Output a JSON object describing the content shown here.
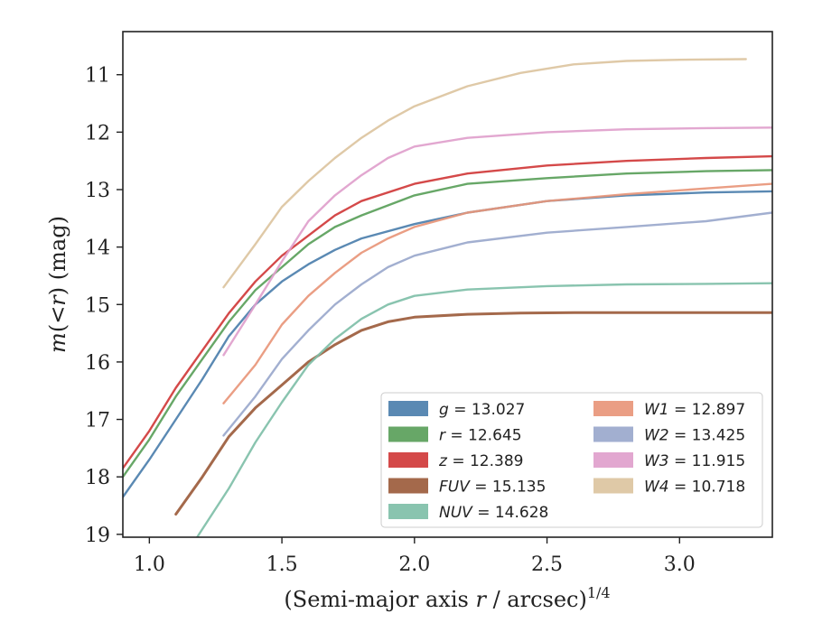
{
  "chart_data": {
    "type": "line",
    "title": "",
    "xlabel_main": "(Semi-major axis ",
    "xlabel_var": "r",
    "xlabel_unit": " / arcsec)",
    "xlabel_exp": "1/4",
    "ylabel_main": "m",
    "ylabel_mid": "(<",
    "ylabel_var": "r",
    "ylabel_end": ") (mag)",
    "xlim": [
      0.9,
      3.35
    ],
    "ylim": [
      19.05,
      10.25
    ],
    "y_inverted": true,
    "grid": false,
    "legend_position": "lower-right",
    "x_ticks": [
      1.0,
      1.5,
      2.0,
      2.5,
      3.0
    ],
    "x_tick_labels": [
      "1.0",
      "1.5",
      "2.0",
      "2.5",
      "3.0"
    ],
    "y_ticks": [
      11,
      12,
      13,
      14,
      15,
      16,
      17,
      18,
      19
    ],
    "y_tick_labels": [
      "11",
      "12",
      "13",
      "14",
      "15",
      "16",
      "17",
      "18",
      "19"
    ],
    "series": [
      {
        "name": "g",
        "value": "13.027",
        "legend_label": "g = 13.027",
        "color": "#4c7fad",
        "points": [
          [
            0.9,
            18.35
          ],
          [
            1.0,
            17.7
          ],
          [
            1.1,
            17.0
          ],
          [
            1.2,
            16.3
          ],
          [
            1.3,
            15.55
          ],
          [
            1.4,
            15.0
          ],
          [
            1.5,
            14.6
          ],
          [
            1.6,
            14.3
          ],
          [
            1.7,
            14.05
          ],
          [
            1.8,
            13.85
          ],
          [
            2.0,
            13.6
          ],
          [
            2.2,
            13.4
          ],
          [
            2.5,
            13.2
          ],
          [
            2.8,
            13.1
          ],
          [
            3.1,
            13.05
          ],
          [
            3.35,
            13.03
          ]
        ]
      },
      {
        "name": "r",
        "value": "12.645",
        "legend_label": "r = 12.645",
        "color": "#5aa05a",
        "points": [
          [
            0.9,
            18.0
          ],
          [
            1.0,
            17.35
          ],
          [
            1.1,
            16.6
          ],
          [
            1.2,
            15.95
          ],
          [
            1.3,
            15.3
          ],
          [
            1.4,
            14.75
          ],
          [
            1.5,
            14.35
          ],
          [
            1.6,
            13.95
          ],
          [
            1.7,
            13.65
          ],
          [
            1.8,
            13.45
          ],
          [
            2.0,
            13.1
          ],
          [
            2.2,
            12.9
          ],
          [
            2.5,
            12.8
          ],
          [
            2.8,
            12.72
          ],
          [
            3.1,
            12.68
          ],
          [
            3.35,
            12.66
          ]
        ]
      },
      {
        "name": "z",
        "value": "12.389",
        "legend_label": "z = 12.389",
        "color": "#d03a3a",
        "points": [
          [
            0.9,
            17.85
          ],
          [
            1.0,
            17.2
          ],
          [
            1.1,
            16.45
          ],
          [
            1.2,
            15.8
          ],
          [
            1.3,
            15.15
          ],
          [
            1.4,
            14.6
          ],
          [
            1.5,
            14.15
          ],
          [
            1.6,
            13.8
          ],
          [
            1.7,
            13.45
          ],
          [
            1.8,
            13.2
          ],
          [
            2.0,
            12.9
          ],
          [
            2.2,
            12.72
          ],
          [
            2.5,
            12.58
          ],
          [
            2.8,
            12.5
          ],
          [
            3.1,
            12.45
          ],
          [
            3.35,
            12.42
          ]
        ]
      },
      {
        "name": "FUV",
        "value": "15.135",
        "legend_label": "FUV = 15.135",
        "color": "#9c5c3c",
        "points": [
          [
            1.1,
            18.65
          ],
          [
            1.2,
            18.0
          ],
          [
            1.3,
            17.3
          ],
          [
            1.4,
            16.8
          ],
          [
            1.5,
            16.4
          ],
          [
            1.6,
            16.0
          ],
          [
            1.7,
            15.7
          ],
          [
            1.8,
            15.45
          ],
          [
            1.9,
            15.3
          ],
          [
            2.0,
            15.22
          ],
          [
            2.2,
            15.17
          ],
          [
            2.4,
            15.15
          ],
          [
            2.62,
            15.14
          ],
          [
            3.0,
            15.14
          ],
          [
            3.35,
            15.14
          ]
        ]
      },
      {
        "name": "NUV",
        "value": "14.628",
        "legend_label": "NUV = 14.628",
        "color": "#7fbfa8",
        "points": [
          [
            1.18,
            19.05
          ],
          [
            1.3,
            18.2
          ],
          [
            1.4,
            17.4
          ],
          [
            1.5,
            16.7
          ],
          [
            1.6,
            16.05
          ],
          [
            1.7,
            15.6
          ],
          [
            1.8,
            15.25
          ],
          [
            1.9,
            15.0
          ],
          [
            2.0,
            14.85
          ],
          [
            2.2,
            14.74
          ],
          [
            2.5,
            14.68
          ],
          [
            2.8,
            14.65
          ],
          [
            3.1,
            14.64
          ],
          [
            3.35,
            14.63
          ]
        ]
      },
      {
        "name": "W1",
        "value": "12.897",
        "legend_label": "W1 = 12.897",
        "color": "#e8967a",
        "points": [
          [
            1.28,
            16.72
          ],
          [
            1.4,
            16.05
          ],
          [
            1.5,
            15.35
          ],
          [
            1.6,
            14.85
          ],
          [
            1.7,
            14.45
          ],
          [
            1.8,
            14.1
          ],
          [
            1.9,
            13.85
          ],
          [
            2.0,
            13.65
          ],
          [
            2.2,
            13.4
          ],
          [
            2.5,
            13.2
          ],
          [
            2.8,
            13.08
          ],
          [
            3.1,
            12.98
          ],
          [
            3.35,
            12.9
          ]
        ]
      },
      {
        "name": "W2",
        "value": "13.425",
        "legend_label": "W2 = 13.425",
        "color": "#9aa8cc",
        "points": [
          [
            1.28,
            17.28
          ],
          [
            1.4,
            16.6
          ],
          [
            1.5,
            15.95
          ],
          [
            1.6,
            15.45
          ],
          [
            1.7,
            15.0
          ],
          [
            1.8,
            14.65
          ],
          [
            1.9,
            14.35
          ],
          [
            2.0,
            14.15
          ],
          [
            2.2,
            13.92
          ],
          [
            2.5,
            13.75
          ],
          [
            2.8,
            13.65
          ],
          [
            3.1,
            13.55
          ],
          [
            3.35,
            13.4
          ]
        ]
      },
      {
        "name": "W3",
        "value": "11.915",
        "legend_label": "W3 = 11.915",
        "color": "#e0a0cc",
        "points": [
          [
            1.28,
            15.88
          ],
          [
            1.4,
            15.0
          ],
          [
            1.5,
            14.25
          ],
          [
            1.6,
            13.55
          ],
          [
            1.7,
            13.1
          ],
          [
            1.8,
            12.75
          ],
          [
            1.9,
            12.45
          ],
          [
            2.0,
            12.25
          ],
          [
            2.2,
            12.1
          ],
          [
            2.5,
            12.0
          ],
          [
            2.8,
            11.95
          ],
          [
            3.1,
            11.93
          ],
          [
            3.35,
            11.92
          ]
        ]
      },
      {
        "name": "W4",
        "value": "10.718",
        "legend_label": "W4 = 10.718",
        "color": "#dcc4a0",
        "points": [
          [
            1.28,
            14.7
          ],
          [
            1.4,
            13.95
          ],
          [
            1.5,
            13.3
          ],
          [
            1.6,
            12.85
          ],
          [
            1.7,
            12.45
          ],
          [
            1.8,
            12.1
          ],
          [
            1.9,
            11.8
          ],
          [
            2.0,
            11.55
          ],
          [
            2.2,
            11.2
          ],
          [
            2.4,
            10.97
          ],
          [
            2.6,
            10.82
          ],
          [
            2.8,
            10.76
          ],
          [
            3.0,
            10.74
          ],
          [
            3.25,
            10.73
          ]
        ]
      }
    ]
  }
}
